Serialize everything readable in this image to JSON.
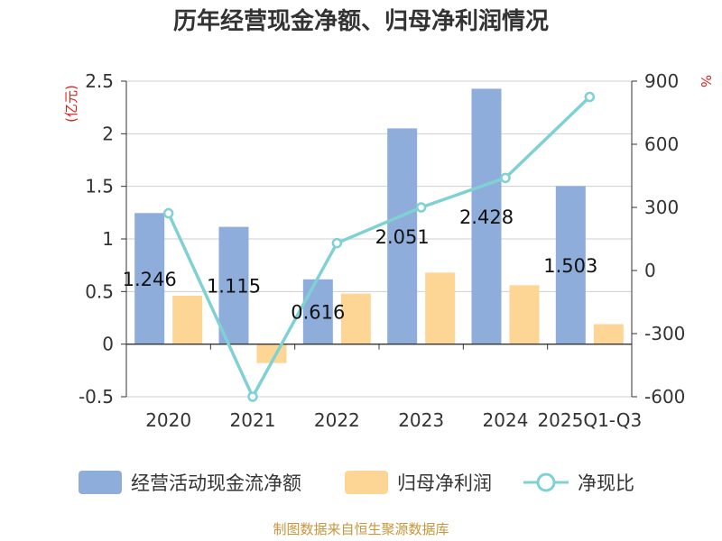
{
  "chart_data": {
    "type": "bar+line",
    "title": "历年经营现金净额、归母净利润情况",
    "categories": [
      "2020",
      "2021",
      "2022",
      "2023",
      "2024",
      "2025Q1-Q3"
    ],
    "series": [
      {
        "name": "经营活动现金流净额",
        "type": "bar",
        "axis": "left",
        "values": [
          1.246,
          1.115,
          0.616,
          2.051,
          2.428,
          1.503
        ],
        "data_labels": [
          "1.246",
          "1.115",
          "0.616",
          "2.051",
          "2.428",
          "1.503"
        ]
      },
      {
        "name": "归母净利润",
        "type": "bar",
        "axis": "left",
        "values": [
          0.46,
          -0.18,
          0.48,
          0.68,
          0.56,
          0.19
        ]
      },
      {
        "name": "净现比",
        "type": "line",
        "axis": "right",
        "values": [
          272,
          -600,
          130,
          300,
          440,
          825
        ]
      }
    ],
    "left_axis": {
      "unit": "(亿元)",
      "min": -0.5,
      "max": 2.5,
      "ticks": [
        -0.5,
        0,
        0.5,
        1,
        1.5,
        2,
        2.5
      ],
      "tick_labels": [
        "-0.5",
        "0",
        "0.5",
        "1",
        "1.5",
        "2",
        "2.5"
      ]
    },
    "right_axis": {
      "unit": "%",
      "min": -600,
      "max": 900,
      "ticks": [
        -600,
        -300,
        0,
        300,
        600,
        900
      ],
      "tick_labels": [
        "-600",
        "-300",
        "0",
        "300",
        "600",
        "900"
      ]
    },
    "colors": {
      "cashflow": "#8eaddb",
      "profit": "#fdd696",
      "ratio": "#7fd1d4"
    },
    "legend_position": "bottom"
  },
  "source": "制图数据来自恒生聚源数据库"
}
